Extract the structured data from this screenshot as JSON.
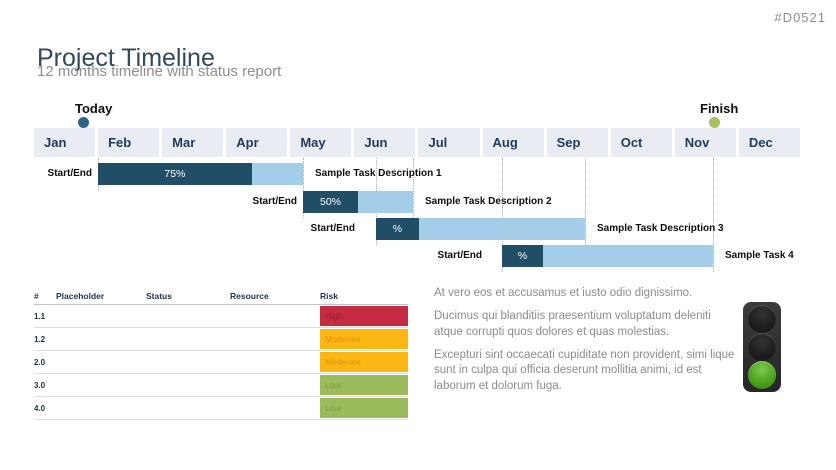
{
  "slide": {
    "id_label": "#D0521",
    "title": "Project Timeline",
    "subtitle": "12 months timeline with status report"
  },
  "timeline": {
    "today_label": "Today",
    "finish_label": "Finish",
    "months": [
      "Jan",
      "Feb",
      "Mar",
      "Apr",
      "May",
      "Jun",
      "Jul",
      "Aug",
      "Sep",
      "Oct",
      "Nov",
      "Dec"
    ],
    "tasks": [
      {
        "start_end_label": "Start/End",
        "progress_label": "75%",
        "progress_fraction": 0.75,
        "description": "Sample Task Description 1"
      },
      {
        "start_end_label": "Start/End",
        "progress_label": "50%",
        "progress_fraction": 0.5,
        "description": "Sample Task Description 2"
      },
      {
        "start_end_label": "Start/End",
        "progress_label": "%",
        "progress_fraction": 0.205,
        "description": "Sample Task Description 3"
      },
      {
        "start_end_label": "Start/End",
        "progress_label": "%",
        "progress_fraction": 0.195,
        "description": "Sample Task 4"
      }
    ]
  },
  "risk_table": {
    "headers": [
      "#",
      "Placeholder",
      "Status",
      "Resource",
      "Risk"
    ],
    "rows": [
      {
        "id": "1.1",
        "placeholder": "",
        "status": "",
        "resource": "",
        "risk": "High"
      },
      {
        "id": "1.2",
        "placeholder": "",
        "status": "",
        "resource": "",
        "risk": "Moderate"
      },
      {
        "id": "2.0",
        "placeholder": "",
        "status": "",
        "resource": "",
        "risk": "Moderate"
      },
      {
        "id": "3.0",
        "placeholder": "",
        "status": "",
        "resource": "",
        "risk": "Low"
      },
      {
        "id": "4.0",
        "placeholder": "",
        "status": "",
        "resource": "",
        "risk": "Low"
      }
    ],
    "risk_colors": {
      "High": {
        "bg": "#c52b42",
        "text": "#9b1a30"
      },
      "Moderate": {
        "bg": "#fdb714",
        "text": "#e0920e"
      },
      "Low": {
        "bg": "#9cbb5c",
        "text": "#7c9e3c"
      }
    }
  },
  "notes": {
    "paragraphs": [
      "At vero eos et accusamus et iusto odio dignissimo.",
      "Ducimus qui blanditiis praesentium voluptatum deleniti atque corrupti quos dolores et quas molestias.",
      "Excepturi sint occaecati cupiditate non provident, simi lique sunt in culpa qui officia deserunt mollitia animi, id est laborum et dolorum fuga."
    ]
  },
  "status_light": {
    "lamps": [
      {
        "name": "red-lamp",
        "state": "off"
      },
      {
        "name": "yellow-lamp",
        "state": "off"
      },
      {
        "name": "green-lamp",
        "state": "on"
      }
    ]
  },
  "colors": {
    "accent_dark": "#1f4e66",
    "accent_light": "#a3cde8",
    "month_bg": "#e9edf3",
    "month_text": "#1e3a5c",
    "today_dot": "#2c6486",
    "finish_dot": "#a6c25d",
    "title_text": "#33495e",
    "muted_text": "#8e8e8e"
  }
}
